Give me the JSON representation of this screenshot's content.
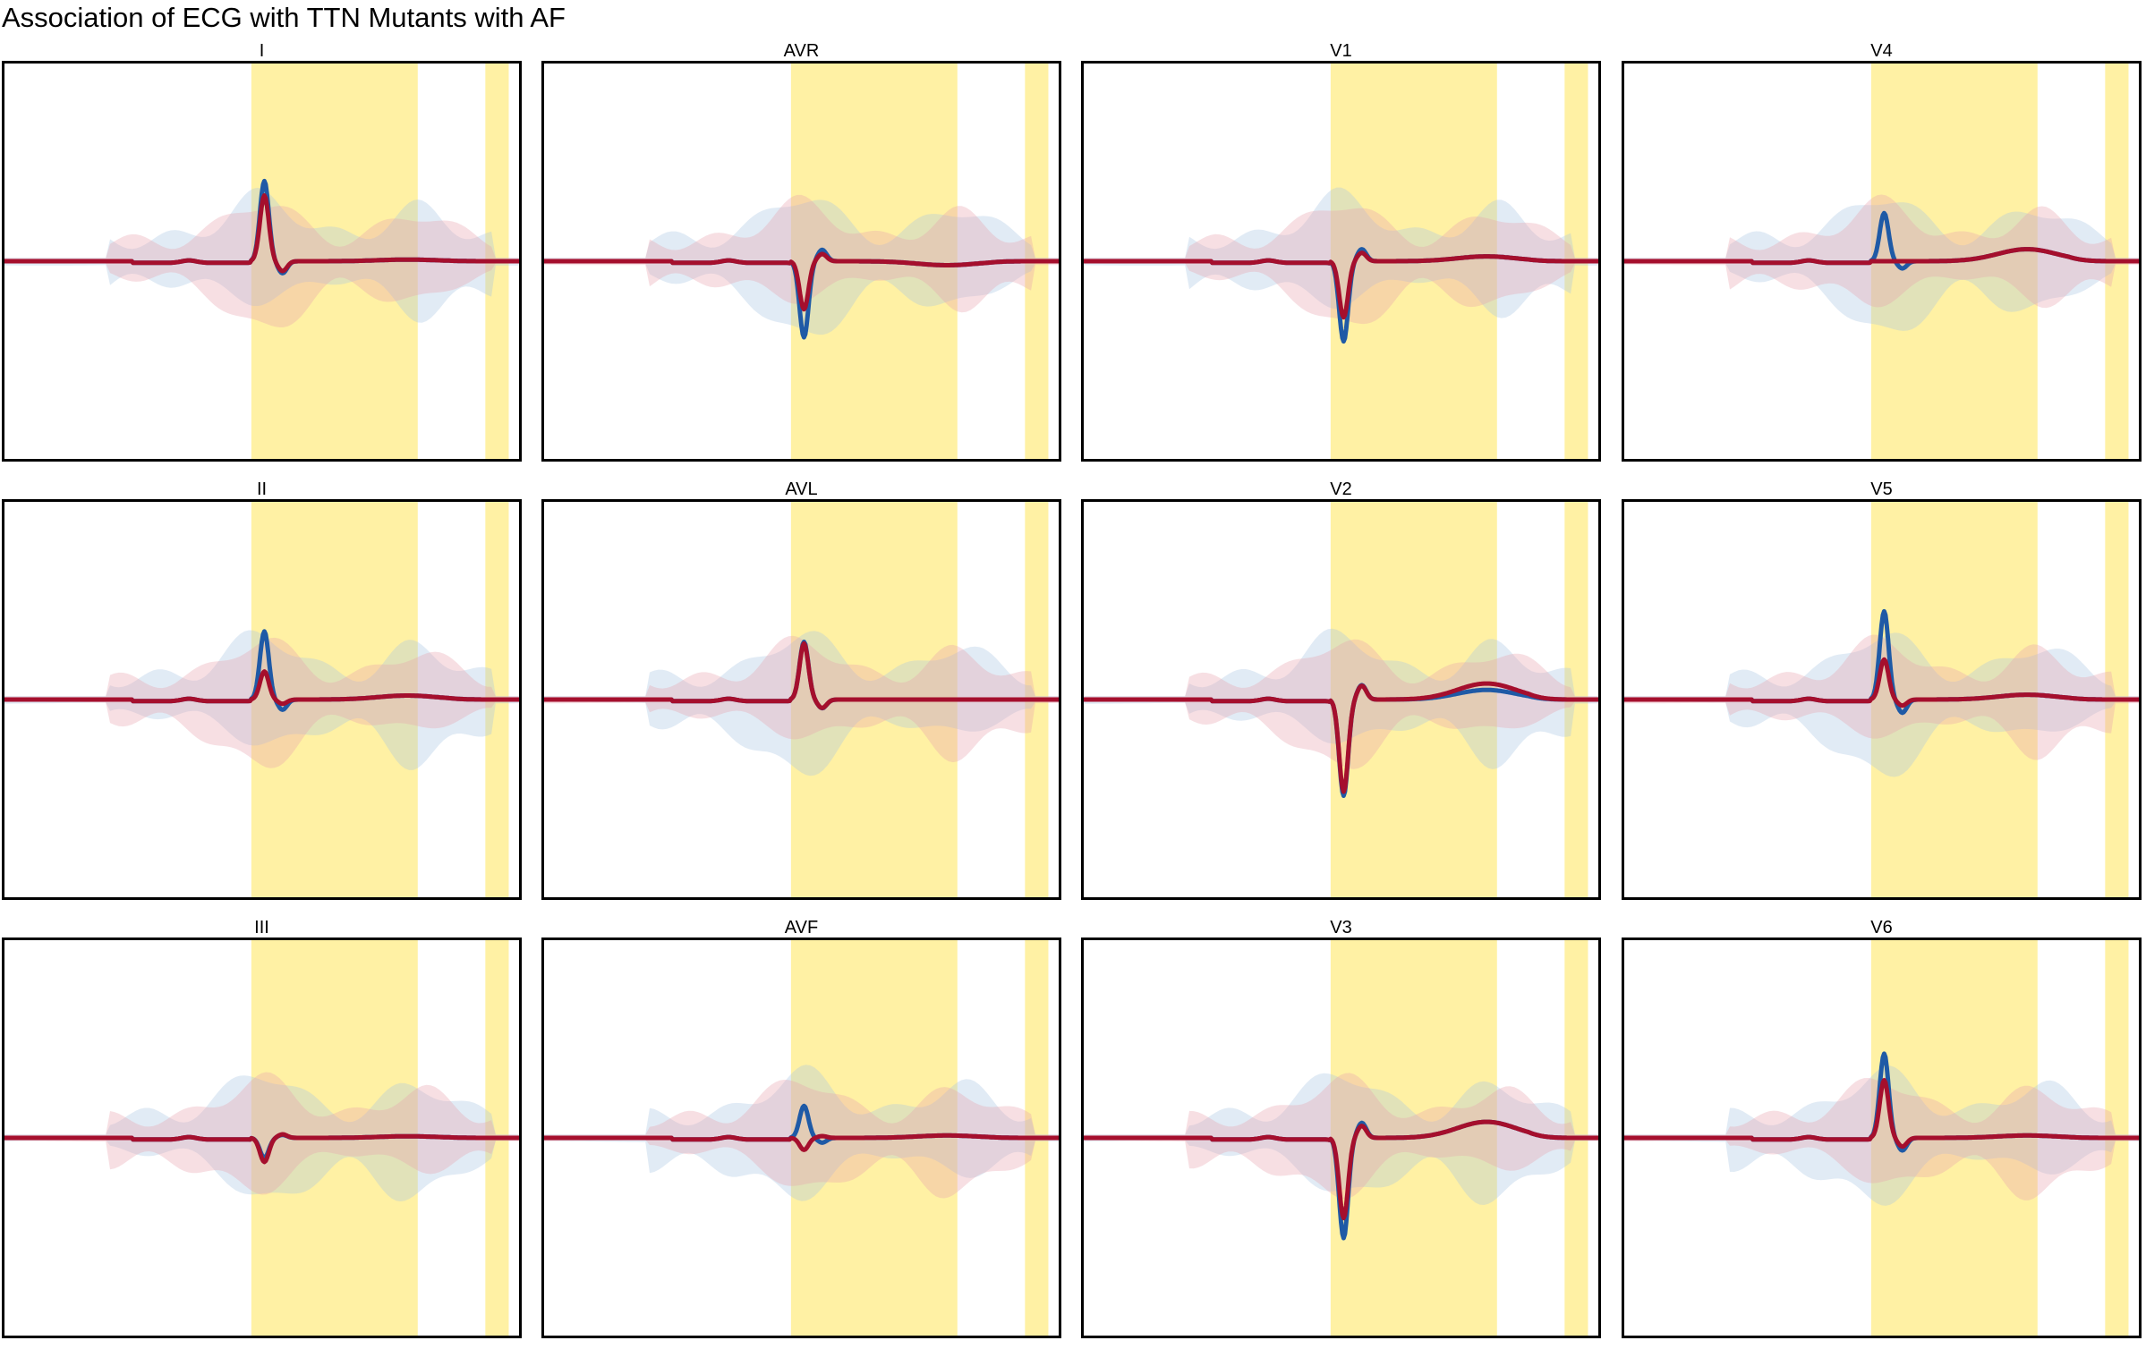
{
  "title": "Association of ECG with TTN Mutants with AF",
  "colors": {
    "highlight": "#ffe868",
    "series_a_line": "#1f5aa6",
    "series_a_band": "#a9c7e3",
    "series_b_line": "#a50f2d",
    "series_b_band": "#e9a3b0",
    "frame": "#000000"
  },
  "chart_data": [
    {
      "type": "line",
      "lead": "I",
      "title": "I",
      "peak_a": 1.0,
      "peak_b": 0.82,
      "t_a": 0.02,
      "t_b": 0.02
    },
    {
      "type": "line",
      "lead": "II",
      "title": "II",
      "peak_a": 0.85,
      "peak_b": 0.35,
      "t_a": 0.05,
      "t_b": 0.05
    },
    {
      "type": "line",
      "lead": "III",
      "title": "III",
      "peak_a": -0.25,
      "peak_b": -0.3,
      "t_a": 0.02,
      "t_b": 0.02
    },
    {
      "type": "line",
      "lead": "AVR",
      "title": "AVR",
      "peak_a": -0.95,
      "peak_b": -0.6,
      "t_a": -0.05,
      "t_b": -0.05
    },
    {
      "type": "line",
      "lead": "AVL",
      "title": "AVL",
      "peak_a": 0.72,
      "peak_b": 0.7,
      "t_a": 0.0,
      "t_b": 0.0
    },
    {
      "type": "line",
      "lead": "AVF",
      "title": "AVF",
      "peak_a": 0.4,
      "peak_b": -0.15,
      "t_a": 0.03,
      "t_b": 0.03
    },
    {
      "type": "line",
      "lead": "V1",
      "title": "V1",
      "peak_a": -1.0,
      "peak_b": -0.7,
      "t_a": 0.06,
      "t_b": 0.06
    },
    {
      "type": "line",
      "lead": "V2",
      "title": "V2",
      "peak_a": -1.2,
      "peak_b": -1.15,
      "t_a": 0.12,
      "t_b": 0.2
    },
    {
      "type": "line",
      "lead": "V3",
      "title": "V3",
      "peak_a": -1.25,
      "peak_b": -1.0,
      "t_a": 0.2,
      "t_b": 0.2
    },
    {
      "type": "line",
      "lead": "V4",
      "title": "V4",
      "peak_a": 0.6,
      "peak_b": 0.0,
      "t_a": 0.15,
      "t_b": 0.15
    },
    {
      "type": "line",
      "lead": "V5",
      "title": "V5",
      "peak_a": 1.1,
      "peak_b": 0.5,
      "t_a": 0.06,
      "t_b": 0.06
    },
    {
      "type": "line",
      "lead": "V6",
      "title": "V6",
      "peak_a": 1.05,
      "peak_b": 0.72,
      "t_a": 0.03,
      "t_b": 0.03
    }
  ]
}
